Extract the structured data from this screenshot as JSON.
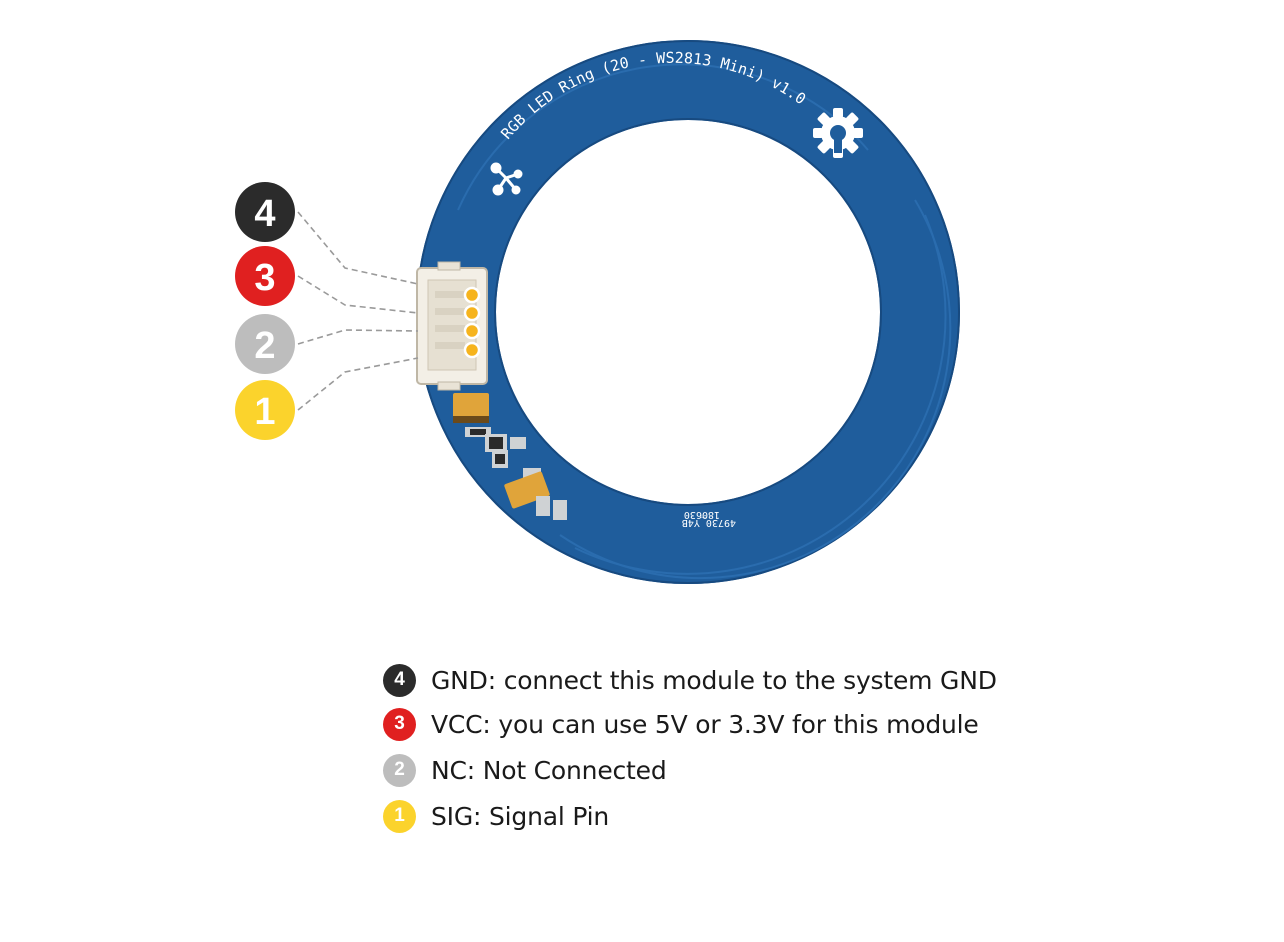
{
  "board": {
    "silkscreen_title": "RGB LED Ring (20 - WS2813 Mini) v1.0",
    "silkscreen_code": "49730_Y4B",
    "silkscreen_date": "180630",
    "pin_labels_top": "VCC GND",
    "pin_labels_bottom": "SIG NC",
    "pcb_color": "#1f5d9c",
    "logo_icons": [
      "gear-icon",
      "molecule-icon"
    ]
  },
  "pins": [
    {
      "number": "4",
      "color": "#2b2b2b",
      "legend": "GND: connect this module to the system GND"
    },
    {
      "number": "3",
      "color": "#e02020",
      "legend": "VCC: you can use 5V or 3.3V for this module"
    },
    {
      "number": "2",
      "color": "#bdbdbd",
      "legend": "NC: Not Connected"
    },
    {
      "number": "1",
      "color": "#fbd32c",
      "legend": "SIG: Signal Pin"
    }
  ]
}
